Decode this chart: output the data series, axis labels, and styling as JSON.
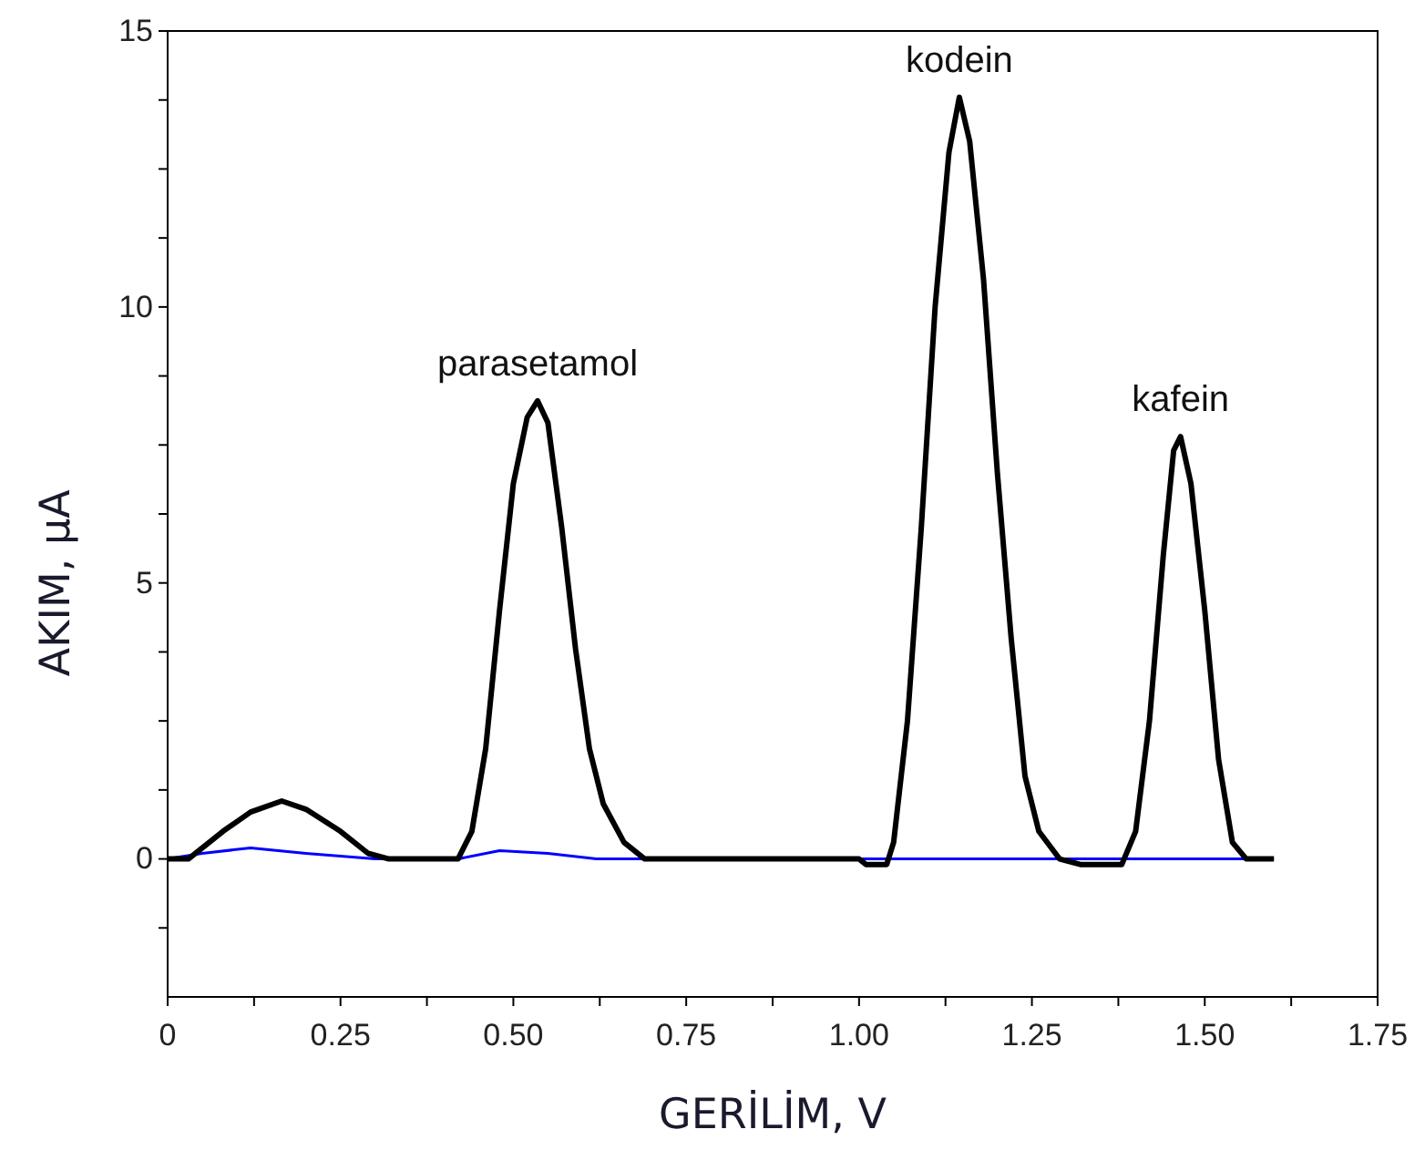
{
  "chart_data": {
    "type": "line",
    "xlabel": "GERİLİM, V",
    "ylabel": "AKIM, µA",
    "xlim": [
      0,
      1.75
    ],
    "ylim": [
      -2.5,
      15
    ],
    "xticks": [
      0,
      {
        "value": 0.125,
        "label": null
      },
      {
        "value": 0.25,
        "label": "0.25"
      },
      {
        "value": 0.375,
        "label": null
      },
      {
        "value": 0.5,
        "label": "0.50"
      },
      {
        "value": 0.625,
        "label": null
      },
      {
        "value": 0.75,
        "label": "0.75"
      },
      {
        "value": 0.875,
        "label": null
      },
      {
        "value": 1,
        "label": "1.00"
      },
      {
        "value": 1.125,
        "label": null
      },
      {
        "value": 1.25,
        "label": "1.25"
      },
      {
        "value": 1.375,
        "label": null
      },
      {
        "value": 1.5,
        "label": "1.50"
      },
      {
        "value": 1.625,
        "label": null
      },
      {
        "value": 1.75,
        "label": "1.75"
      }
    ],
    "yticks": [
      {
        "value": -1.25,
        "label": null
      },
      0,
      {
        "value": 1.25,
        "label": null
      },
      {
        "value": 2.5,
        "label": null
      },
      {
        "value": 3.75,
        "label": null
      },
      5,
      {
        "value": 6.25,
        "label": null
      },
      {
        "value": 7.5,
        "label": null
      },
      {
        "value": 8.75,
        "label": null
      },
      10,
      {
        "value": 11.25,
        "label": null
      },
      {
        "value": 12.5,
        "label": null
      },
      {
        "value": 13.75,
        "label": null
      },
      15
    ],
    "grid": false,
    "marker": "none",
    "line_style": "solid",
    "series": [
      {
        "color": "#000000",
        "x": [
          0,
          0.03,
          0.08,
          0.12,
          0.165,
          0.2,
          0.25,
          0.29,
          0.32,
          0.42,
          0.44,
          0.46,
          0.48,
          0.5,
          0.52,
          0.535,
          0.55,
          0.57,
          0.59,
          0.61,
          0.63,
          0.66,
          0.69,
          1.0,
          1.01,
          1.04,
          1.05,
          1.07,
          1.09,
          1.11,
          1.13,
          1.145,
          1.16,
          1.18,
          1.2,
          1.22,
          1.24,
          1.26,
          1.29,
          1.32,
          1.38,
          1.4,
          1.42,
          1.44,
          1.455,
          1.465,
          1.48,
          1.5,
          1.52,
          1.54,
          1.56,
          1.6
        ],
        "values": [
          0,
          0,
          0.5,
          0.85,
          1.05,
          0.9,
          0.5,
          0.1,
          0,
          0,
          0.5,
          2,
          4.5,
          6.8,
          8,
          8.3,
          7.9,
          6,
          3.8,
          2,
          1,
          0.3,
          0,
          0,
          -0.1,
          -0.1,
          0.3,
          2.5,
          6,
          10,
          12.8,
          13.8,
          13,
          10.5,
          7,
          4,
          1.5,
          0.5,
          0,
          -0.1,
          -0.1,
          0.5,
          2.5,
          5.5,
          7.4,
          7.65,
          6.8,
          4.5,
          1.8,
          0.3,
          0,
          0
        ]
      },
      {
        "color": "#0000ff",
        "x": [
          0,
          0.05,
          0.12,
          0.2,
          0.3,
          0.42,
          0.48,
          0.55,
          0.62,
          1.6
        ],
        "values": [
          0,
          0.1,
          0.2,
          0.1,
          0,
          0,
          0.15,
          0.1,
          0,
          0
        ]
      }
    ],
    "annotations": [
      {
        "text": "parasetamol",
        "x": 0.535,
        "y": 8.3
      },
      {
        "text": "kodein",
        "x": 1.145,
        "y": 13.8
      },
      {
        "text": "kafein",
        "x": 1.465,
        "y": 7.65
      }
    ]
  }
}
